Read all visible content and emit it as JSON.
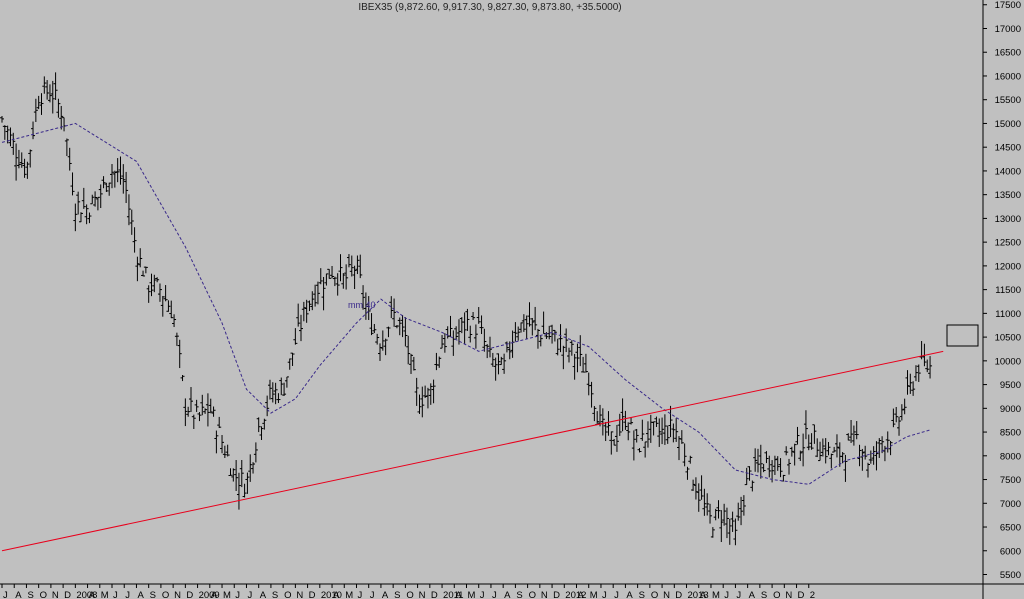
{
  "chart_data": {
    "type": "ohlc",
    "title": "IBEX35 (9,872.60, 9,917.30, 9,827.30, 9,873.80, +35.5000)",
    "y_axis": {
      "position": "right",
      "ticks": [
        5500,
        6000,
        6500,
        7000,
        7500,
        8000,
        8500,
        9000,
        9500,
        10000,
        10500,
        11000,
        11500,
        12000,
        12500,
        13000,
        13500,
        14000,
        14500,
        15000,
        15500,
        16000,
        16500,
        17000,
        17500
      ],
      "ylim": [
        5300,
        17600
      ]
    },
    "x_axis": {
      "tick_labels": [
        "J",
        "A",
        "S",
        "O",
        "N",
        "D",
        "2008",
        "A",
        "M",
        "J",
        "J",
        "A",
        "S",
        "O",
        "N",
        "D",
        "2009",
        "A",
        "M",
        "J",
        "J",
        "A",
        "S",
        "O",
        "N",
        "D",
        "2010",
        "A",
        "M",
        "J",
        "J",
        "A",
        "S",
        "O",
        "N",
        "D",
        "2011",
        "A",
        "M",
        "J",
        "J",
        "A",
        "S",
        "O",
        "N",
        "D",
        "2012",
        "A",
        "M",
        "J",
        "J",
        "A",
        "S",
        "O",
        "N",
        "D",
        "2013",
        "A",
        "M",
        "J",
        "J",
        "A",
        "S",
        "O",
        "N",
        "D",
        "2"
      ]
    },
    "series": [
      {
        "kind": "weekly price bars",
        "approx_close_path": [
          [
            "2007-07",
            15100
          ],
          [
            "2007-08",
            14500
          ],
          [
            "2007-09",
            14000
          ],
          [
            "2007-10",
            15600
          ],
          [
            "2007-11",
            15700
          ],
          [
            "2007-12",
            15200
          ],
          [
            "2008-01",
            13300
          ],
          [
            "2008-02",
            13200
          ],
          [
            "2008-03",
            13500
          ],
          [
            "2008-04",
            14000
          ],
          [
            "2008-05",
            13800
          ],
          [
            "2008-06",
            12300
          ],
          [
            "2008-07",
            11600
          ],
          [
            "2008-08",
            11500
          ],
          [
            "2008-09",
            11000
          ],
          [
            "2008-10",
            9100
          ],
          [
            "2008-11",
            8800
          ],
          [
            "2008-12",
            9000
          ],
          [
            "2009-01",
            8300
          ],
          [
            "2009-02",
            7600
          ],
          [
            "2009-03",
            7400
          ],
          [
            "2009-04",
            8600
          ],
          [
            "2009-05",
            9300
          ],
          [
            "2009-06",
            9400
          ],
          [
            "2009-07",
            10400
          ],
          [
            "2009-08",
            11200
          ],
          [
            "2009-09",
            11600
          ],
          [
            "2009-10",
            11900
          ],
          [
            "2009-11",
            11700
          ],
          [
            "2009-12",
            12000
          ],
          [
            "2010-01",
            10900
          ],
          [
            "2010-02",
            10400
          ],
          [
            "2010-03",
            11000
          ],
          [
            "2010-04",
            10500
          ],
          [
            "2010-05",
            9200
          ],
          [
            "2010-06",
            9300
          ],
          [
            "2010-07",
            10400
          ],
          [
            "2010-08",
            10500
          ],
          [
            "2010-09",
            10800
          ],
          [
            "2010-10",
            10700
          ],
          [
            "2010-11",
            10000
          ],
          [
            "2010-12",
            9800
          ],
          [
            "2011-01",
            10700
          ],
          [
            "2011-02",
            10800
          ],
          [
            "2011-03",
            10600
          ],
          [
            "2011-04",
            10500
          ],
          [
            "2011-05",
            10300
          ],
          [
            "2011-06",
            10100
          ],
          [
            "2011-07",
            9700
          ],
          [
            "2011-08",
            8600
          ],
          [
            "2011-09",
            8300
          ],
          [
            "2011-10",
            8800
          ],
          [
            "2011-11",
            8200
          ],
          [
            "2011-12",
            8500
          ],
          [
            "2012-01",
            8500
          ],
          [
            "2012-02",
            8600
          ],
          [
            "2012-03",
            8000
          ],
          [
            "2012-04",
            7200
          ],
          [
            "2012-05",
            6600
          ],
          [
            "2012-06",
            6800
          ],
          [
            "2012-07",
            6300
          ],
          [
            "2012-08",
            7500
          ],
          [
            "2012-09",
            7800
          ],
          [
            "2012-10",
            7900
          ],
          [
            "2012-11",
            7800
          ],
          [
            "2012-12",
            8200
          ],
          [
            "2013-01",
            8400
          ],
          [
            "2013-02",
            8200
          ],
          [
            "2013-03",
            8000
          ],
          [
            "2013-04",
            8100
          ],
          [
            "2013-05",
            8400
          ],
          [
            "2013-06",
            7800
          ],
          [
            "2013-07",
            8300
          ],
          [
            "2013-08",
            8500
          ],
          [
            "2013-09",
            9200
          ],
          [
            "2013-10",
            9900
          ],
          [
            "2013-11",
            9870
          ]
        ]
      },
      {
        "name": "mm 40",
        "kind": "moving average",
        "style": "dashed",
        "approx_values": [
          [
            "2007-07",
            14600
          ],
          [
            "2008-01",
            15000
          ],
          [
            "2008-06",
            14200
          ],
          [
            "2008-10",
            12400
          ],
          [
            "2009-01",
            10800
          ],
          [
            "2009-03",
            9400
          ],
          [
            "2009-05",
            8900
          ],
          [
            "2009-07",
            9200
          ],
          [
            "2009-09",
            9900
          ],
          [
            "2009-12",
            10800
          ],
          [
            "2010-02",
            11300
          ],
          [
            "2010-04",
            10900
          ],
          [
            "2010-07",
            10600
          ],
          [
            "2010-10",
            10200
          ],
          [
            "2011-01",
            10400
          ],
          [
            "2011-04",
            10600
          ],
          [
            "2011-07",
            10300
          ],
          [
            "2011-10",
            9600
          ],
          [
            "2012-01",
            9000
          ],
          [
            "2012-04",
            8500
          ],
          [
            "2012-07",
            7700
          ],
          [
            "2012-10",
            7500
          ],
          [
            "2013-01",
            7400
          ],
          [
            "2013-04",
            7900
          ],
          [
            "2013-07",
            8100
          ],
          [
            "2013-09",
            8400
          ],
          [
            "2013-11",
            8550
          ]
        ]
      },
      {
        "kind": "trendline",
        "approx_values": [
          [
            "2007-07",
            6000
          ],
          [
            "2013-12",
            10200
          ]
        ]
      }
    ],
    "annotations": [
      "mm 40"
    ],
    "grid": false,
    "legend": "none"
  },
  "colors": {
    "background": "#c0c0c0",
    "bars": "#000000",
    "moving_average": "#3a2a8a",
    "trendline": "#e8001c",
    "axis": "#000000"
  }
}
